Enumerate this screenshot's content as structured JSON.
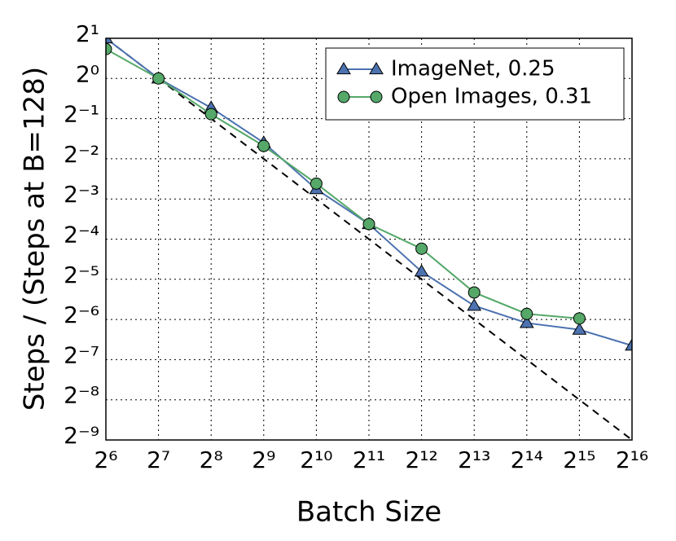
{
  "chart_data": {
    "type": "line",
    "xlabel": "Batch Size",
    "ylabel": "Steps / (Steps at B=128)",
    "xscale": "log",
    "yscale": "log",
    "log_base": 2,
    "xlim": [
      64,
      65536
    ],
    "ylim": [
      0.001953125,
      2
    ],
    "xticks": [
      {
        "value": 64,
        "label": "2⁶"
      },
      {
        "value": 128,
        "label": "2⁷"
      },
      {
        "value": 256,
        "label": "2⁸"
      },
      {
        "value": 512,
        "label": "2⁹"
      },
      {
        "value": 1024,
        "label": "2¹⁰"
      },
      {
        "value": 2048,
        "label": "2¹¹"
      },
      {
        "value": 4096,
        "label": "2¹²"
      },
      {
        "value": 8192,
        "label": "2¹³"
      },
      {
        "value": 16384,
        "label": "2¹⁴"
      },
      {
        "value": 32768,
        "label": "2¹⁵"
      },
      {
        "value": 65536,
        "label": "2¹⁶"
      }
    ],
    "yticks": [
      {
        "value": 2,
        "label": "2¹"
      },
      {
        "value": 1,
        "label": "2⁰"
      },
      {
        "value": 0.5,
        "label": "2⁻¹"
      },
      {
        "value": 0.25,
        "label": "2⁻²"
      },
      {
        "value": 0.125,
        "label": "2⁻³"
      },
      {
        "value": 0.0625,
        "label": "2⁻⁴"
      },
      {
        "value": 0.03125,
        "label": "2⁻⁵"
      },
      {
        "value": 0.015625,
        "label": "2⁻⁶"
      },
      {
        "value": 0.0078125,
        "label": "2⁻⁷"
      },
      {
        "value": 0.00390625,
        "label": "2⁻⁸"
      },
      {
        "value": 0.001953125,
        "label": "2⁻⁹"
      }
    ],
    "grid": true,
    "legend": "upper right",
    "x": [
      64,
      128,
      256,
      512,
      1024,
      2048,
      4096,
      8192,
      16384,
      32768,
      65536
    ],
    "series": [
      {
        "name": "ImageNet, 0.25",
        "color": "#4c72b0",
        "marker": "triangle",
        "values": [
          2,
          1,
          0.603,
          0.33,
          0.148,
          0.081,
          0.0357,
          0.0198,
          0.0147,
          0.0131,
          0.00996
        ]
      },
      {
        "name": "Open Images, 0.31",
        "color": "#55a868",
        "marker": "circle",
        "values": [
          1.66,
          1,
          0.54,
          0.312,
          0.163,
          0.081,
          0.053,
          0.0249,
          0.0172,
          0.0159,
          null
        ]
      }
    ],
    "reference_line": {
      "x": [
        64,
        65536
      ],
      "values": [
        2,
        0.001953125
      ],
      "color": "#000000",
      "dashed": true
    }
  }
}
